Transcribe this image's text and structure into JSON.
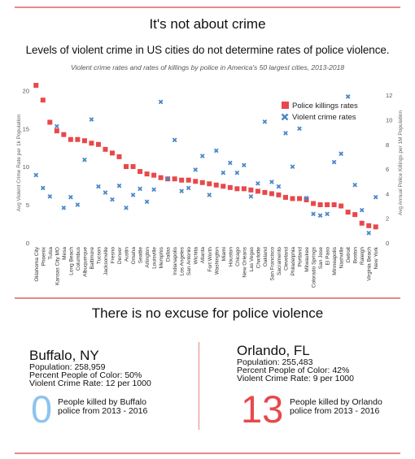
{
  "header": {
    "title": "It's not about crime",
    "subtitle": "Levels of violent crime in US cities do not determine rates of police violence."
  },
  "chart_data": {
    "type": "scatter",
    "title": "Violent crime rates and rates of killings by police in America's 50 largest cities, 2013-2018",
    "ylabel_left": "Avg Violent Crime Rate per 1k Population",
    "ylabel_right": "Avg Annual Police Killings per 1M Population",
    "ylim_left": [
      0,
      21
    ],
    "ylim_right": [
      0,
      13
    ],
    "yticks_left": [
      "0",
      "5",
      "10",
      "15",
      "20"
    ],
    "yticks_right": [
      "0",
      "2",
      "4",
      "6",
      "8",
      "10",
      "12"
    ],
    "legend_position": "top-right",
    "categories": [
      "Oklahoma City",
      "Phoenix",
      "Tulsa",
      "Kansas City MO",
      "Mesa",
      "Long Beach",
      "Columbus",
      "Albuquerque",
      "Baltimore",
      "Tucson",
      "Jacksonville",
      "Fresno",
      "Denver",
      "Austin",
      "Omaha",
      "Seattle",
      "Arlington",
      "Louisville",
      "Memphis",
      "Dallas",
      "Indianapolis",
      "Los Angeles",
      "San Antonio",
      "Wichita",
      "Atlanta",
      "Fort Worth",
      "Washington",
      "Miami",
      "Houston",
      "Chicago",
      "New Orleans",
      "Las Vegas",
      "Charlotte",
      "Oakland",
      "San Francisco",
      "Sacramento",
      "Cleveland",
      "Philadelphia",
      "Portland",
      "Milwaukee",
      "Colorado Springs",
      "San Jose",
      "El Paso",
      "Minneapolis",
      "Nashville",
      "Detroit",
      "Boston",
      "Raleigh",
      "Virginia Beach",
      "New York"
    ],
    "series": [
      {
        "name": "Police killings rates",
        "axis": "right",
        "color": "#e8484b",
        "marker": "square",
        "values": [
          12.8,
          11.6,
          9.8,
          9.1,
          8.8,
          8.4,
          8.4,
          8.3,
          8.1,
          8.0,
          7.6,
          7.3,
          7.0,
          6.2,
          6.2,
          5.8,
          5.6,
          5.5,
          5.3,
          5.2,
          5.2,
          5.1,
          5.1,
          5.0,
          4.9,
          4.8,
          4.7,
          4.6,
          4.5,
          4.4,
          4.4,
          4.3,
          4.2,
          4.1,
          4.0,
          3.9,
          3.7,
          3.6,
          3.6,
          3.5,
          3.2,
          3.1,
          3.1,
          3.1,
          3.0,
          2.5,
          2.3,
          1.6,
          1.4,
          1.3
        ]
      },
      {
        "name": "Violent crime rates",
        "axis": "left",
        "color": "#4a86c8",
        "marker": "x",
        "values": [
          8.9,
          7.2,
          6.1,
          15.3,
          4.6,
          6.0,
          5.0,
          10.9,
          16.2,
          7.4,
          6.6,
          5.7,
          7.5,
          4.6,
          6.3,
          7.1,
          5.4,
          7.0,
          18.5,
          8.4,
          13.5,
          6.8,
          7.2,
          9.6,
          11.4,
          6.3,
          12.1,
          9.2,
          10.5,
          9.2,
          10.2,
          6.1,
          7.8,
          15.9,
          8.0,
          7.4,
          14.4,
          10.0,
          15.0,
          5.9,
          3.8,
          3.6,
          3.8,
          10.6,
          11.7,
          19.2,
          7.6,
          4.3,
          1.3,
          6.0
        ]
      }
    ]
  },
  "section2": {
    "title": "There is no excuse for police violence"
  },
  "cities": [
    {
      "name": "Buffalo, NY",
      "population": "Population: 258,959",
      "poc": "Percent People of Color: 50%",
      "crime": "Violent Crime Rate: 12 per 1000",
      "killed_number": "0",
      "killed_label_line1": "People killed by Buffalo",
      "killed_label_line2": "police from 2013 - 2016",
      "number_color": "#8ec3ee"
    },
    {
      "name": "Orlando, FL",
      "population": "Population: 255,483",
      "poc": "Percent People of Color: 42%",
      "crime": "Violent Crime Rate: 9 per 1000",
      "killed_number": "13",
      "killed_label_line1": "People killed by Orlando",
      "killed_label_line2": "police from 2013 - 2016",
      "number_color": "#e8484b"
    }
  ]
}
